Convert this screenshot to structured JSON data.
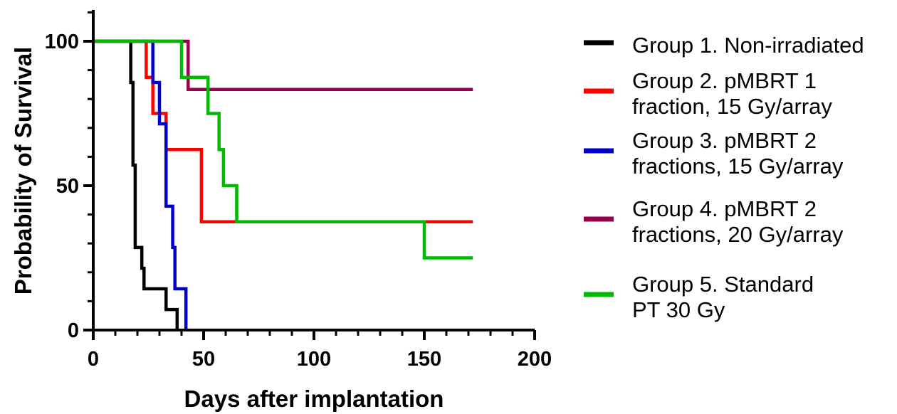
{
  "chart_data": {
    "type": "line",
    "step": true,
    "title": "",
    "xlabel": "Days after implantation",
    "ylabel": "Probability of Survival",
    "xlim": [
      0,
      200
    ],
    "ylim": [
      0,
      100
    ],
    "x_ticks": [
      0,
      50,
      100,
      150,
      200
    ],
    "y_ticks": [
      0,
      50,
      100
    ],
    "x_tick_labels": [
      "0",
      "50",
      "100",
      "150",
      "200"
    ],
    "y_tick_labels": [
      "0",
      "50",
      "100"
    ],
    "grid": false,
    "legend_position": "right",
    "series": [
      {
        "name": "Group 1. Non-irradiated",
        "color": "#000000",
        "x": [
          0,
          17,
          18,
          19,
          20,
          22,
          23,
          33,
          37,
          38
        ],
        "y": [
          100,
          85.7,
          57.1,
          28.6,
          28.6,
          21.4,
          14.3,
          7.1,
          7.1,
          0
        ]
      },
      {
        "name": "Group 2. pMBRT 1 fraction, 15 Gy/array",
        "color": "#ff0000",
        "x": [
          0,
          24,
          27,
          29,
          33,
          37,
          49,
          172
        ],
        "y": [
          100,
          87.5,
          75,
          75,
          62.5,
          62.5,
          37.5,
          37.5
        ]
      },
      {
        "name": "Group 3. pMBRT 2 fractions, 15 Gy/array",
        "color": "#0000cc",
        "x": [
          0,
          27,
          29,
          30,
          32,
          33,
          35,
          36,
          37,
          39,
          42
        ],
        "y": [
          100,
          85.7,
          85.7,
          71.4,
          71.4,
          42.9,
          42.9,
          28.6,
          14.3,
          14.3,
          0
        ]
      },
      {
        "name": "Group 4. pMBRT 2 fractions, 20 Gy/array",
        "color": "#99004c",
        "x": [
          0,
          43,
          172
        ],
        "y": [
          100,
          83.3,
          83.3
        ]
      },
      {
        "name": "Group 5. Standard PT 30 Gy",
        "color": "#00bb00",
        "x": [
          0,
          40,
          48,
          52,
          56,
          57,
          59,
          65,
          150,
          172
        ],
        "y": [
          100,
          87.5,
          87.5,
          75,
          75,
          62.5,
          50,
          37.5,
          25,
          25
        ]
      }
    ]
  },
  "legend": [
    {
      "lines": [
        "Group 1. Non-irradiated"
      ],
      "color": "#000000"
    },
    {
      "lines": [
        "Group 2. pMBRT 1",
        "fraction, 15 Gy/array"
      ],
      "color": "#ff0000"
    },
    {
      "lines": [
        "Group 3. pMBRT 2",
        "fractions, 15 Gy/array"
      ],
      "color": "#0000cc"
    },
    {
      "lines": [
        "Group 4. pMBRT 2",
        "fractions, 20 Gy/array"
      ],
      "color": "#99004c"
    },
    {
      "lines": [
        "Group 5. Standard",
        "PT 30 Gy"
      ],
      "color": "#00bb00"
    }
  ]
}
